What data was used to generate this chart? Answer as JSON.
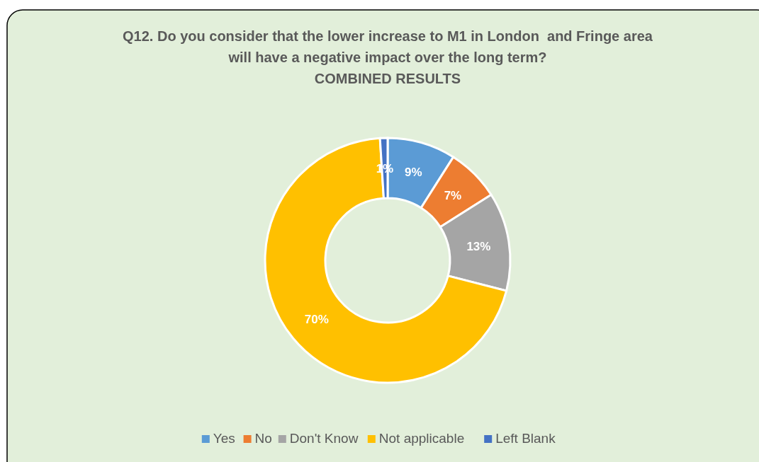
{
  "chart_data": {
    "type": "donut",
    "title": "Q12. Do you consider that the lower increase to M1 in London  and Fringe area will have a negative impact over the long term?",
    "subtitle": "COMBINED RESULTS",
    "categories": [
      "Yes",
      "No",
      "Don't Know",
      "Not applicable",
      "Left Blank"
    ],
    "values": [
      9,
      7,
      13,
      70,
      1
    ],
    "value_labels": [
      "9%",
      "7%",
      "13%",
      "70%",
      "1%"
    ],
    "colors": [
      "#5b9bd5",
      "#ed7d31",
      "#a5a5a5",
      "#ffc000",
      "#4472c4"
    ],
    "legend": "bottom"
  }
}
